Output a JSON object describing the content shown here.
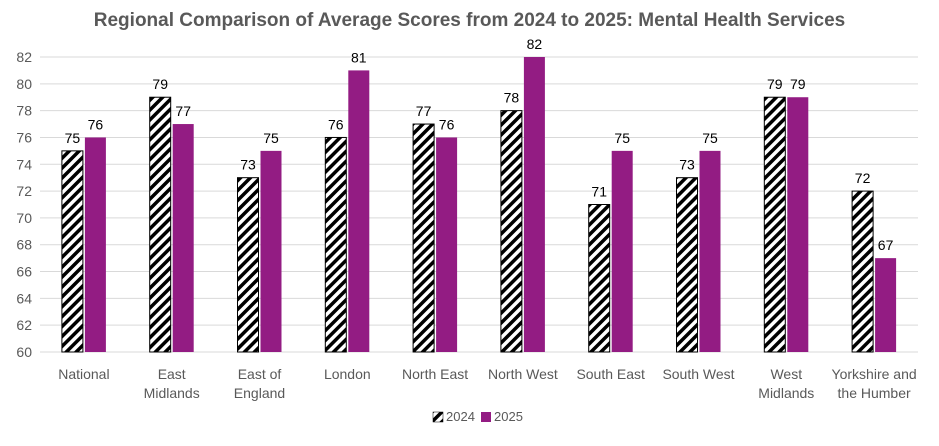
{
  "chart_data": {
    "type": "bar",
    "title": "Regional Comparison  of Average Scores from 2024 to 2025: Mental Health Services",
    "categories": [
      [
        "National"
      ],
      [
        "East",
        "Midlands"
      ],
      [
        "East of",
        "England"
      ],
      [
        "London"
      ],
      [
        "North East"
      ],
      [
        "North West"
      ],
      [
        "South East"
      ],
      [
        "South West"
      ],
      [
        "West",
        "Midlands"
      ],
      [
        "Yorkshire and",
        "the Humber"
      ]
    ],
    "series": [
      {
        "name": "2024",
        "values": [
          75,
          79,
          73,
          76,
          77,
          78,
          71,
          73,
          79,
          72
        ],
        "fill": "hatch",
        "color": "#000000"
      },
      {
        "name": "2025",
        "values": [
          76,
          77,
          75,
          81,
          76,
          82,
          75,
          75,
          79,
          67
        ],
        "fill": "solid",
        "color": "#931C83"
      }
    ],
    "ylim": [
      60,
      82
    ],
    "yticks": [
      60,
      62,
      64,
      66,
      68,
      70,
      72,
      74,
      76,
      78,
      80,
      82
    ],
    "xlabel": "",
    "ylabel": "",
    "grid": true,
    "legend": "bottom"
  }
}
